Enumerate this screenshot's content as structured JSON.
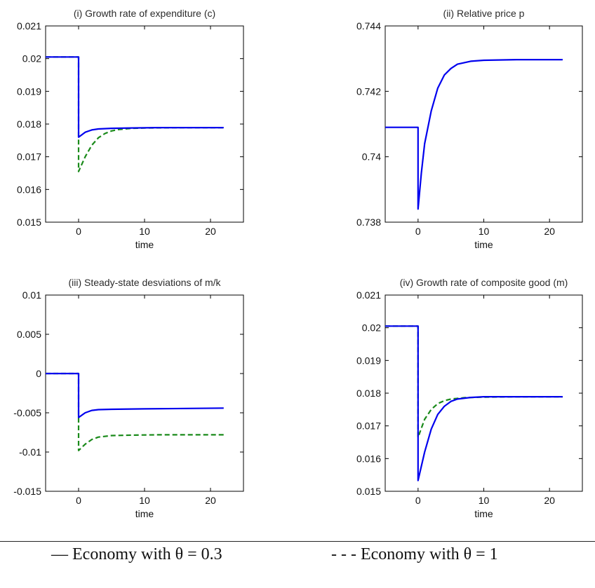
{
  "legend": {
    "series1_label": "— Economy with θ = 0.3",
    "series2_label": "- - - Economy with θ = 1"
  },
  "colors": {
    "series1": "#0000ee",
    "series2": "#1a8a1a",
    "axis": "#000000"
  },
  "chart_data": [
    {
      "type": "line",
      "title": "(i) Growth rate of expenditure (c)",
      "xlabel": "time",
      "ylabel": "",
      "xlim": [
        -5,
        25
      ],
      "ylim": [
        0.015,
        0.021
      ],
      "xticks": [
        "0",
        "10",
        "20"
      ],
      "yticks": [
        "0.015",
        "0.016",
        "0.017",
        "0.018",
        "0.019",
        "0.02",
        "0.021"
      ],
      "series": [
        {
          "values": [
            [
              -5,
              0.02005
            ],
            [
              0,
              0.02005
            ],
            [
              0,
              0.0176
            ],
            [
              1,
              0.01775
            ],
            [
              2,
              0.01782
            ],
            [
              3,
              0.01785
            ],
            [
              5,
              0.01787
            ],
            [
              8,
              0.01788
            ],
            [
              12,
              0.01789
            ],
            [
              22,
              0.01789
            ]
          ]
        },
        {
          "values": [
            [
              -5,
              0.02005
            ],
            [
              0,
              0.02005
            ],
            [
              0,
              0.01655
            ],
            [
              1,
              0.017
            ],
            [
              2,
              0.01735
            ],
            [
              3,
              0.01758
            ],
            [
              4,
              0.01771
            ],
            [
              5,
              0.01779
            ],
            [
              6,
              0.01783
            ],
            [
              8,
              0.01787
            ],
            [
              10,
              0.01788
            ],
            [
              15,
              0.01789
            ],
            [
              22,
              0.01789
            ]
          ]
        }
      ]
    },
    {
      "type": "line",
      "title": "(ii) Relative price p",
      "xlabel": "time",
      "ylabel": "",
      "xlim": [
        -5,
        25
      ],
      "ylim": [
        0.738,
        0.744
      ],
      "xticks": [
        "0",
        "10",
        "20"
      ],
      "yticks": [
        "0.738",
        "0.74",
        "0.742",
        "0.744"
      ],
      "series": [
        {
          "values": [
            [
              -5,
              0.7409
            ],
            [
              0,
              0.7409
            ],
            [
              0,
              0.7384
            ],
            [
              0.5,
              0.7395
            ],
            [
              1,
              0.7404
            ],
            [
              2,
              0.7414
            ],
            [
              3,
              0.7421
            ],
            [
              4,
              0.7425
            ],
            [
              5,
              0.7427
            ],
            [
              6,
              0.74283
            ],
            [
              8,
              0.74292
            ],
            [
              10,
              0.74295
            ],
            [
              15,
              0.74297
            ],
            [
              22,
              0.74297
            ]
          ]
        }
      ]
    },
    {
      "type": "line",
      "title": "(iii) Steady-state desviations of m/k",
      "xlabel": "time",
      "ylabel": "",
      "xlim": [
        -5,
        25
      ],
      "ylim": [
        -0.015,
        0.01
      ],
      "xticks": [
        "0",
        "10",
        "20"
      ],
      "yticks": [
        "-0.015",
        "-0.01",
        "-0.005",
        "0",
        "0.005",
        "0.01"
      ],
      "series": [
        {
          "values": [
            [
              -5,
              0
            ],
            [
              0,
              0
            ],
            [
              0,
              -0.0056
            ],
            [
              1,
              -0.005
            ],
            [
              2,
              -0.0047
            ],
            [
              3,
              -0.0046
            ],
            [
              5,
              -0.00455
            ],
            [
              10,
              -0.0045
            ],
            [
              22,
              -0.0044
            ]
          ]
        },
        {
          "values": [
            [
              -5,
              0
            ],
            [
              0,
              0
            ],
            [
              0,
              -0.0098
            ],
            [
              1,
              -0.009
            ],
            [
              2,
              -0.0084
            ],
            [
              3,
              -0.0081
            ],
            [
              5,
              -0.0079
            ],
            [
              8,
              -0.00785
            ],
            [
              12,
              -0.0078
            ],
            [
              22,
              -0.0078
            ]
          ]
        }
      ]
    },
    {
      "type": "line",
      "title": "(iv) Growth rate of composite good (m)",
      "xlabel": "time",
      "ylabel": "",
      "xlim": [
        -5,
        25
      ],
      "ylim": [
        0.015,
        0.021
      ],
      "xticks": [
        "0",
        "10",
        "20"
      ],
      "yticks": [
        "0.015",
        "0.016",
        "0.017",
        "0.018",
        "0.019",
        "0.02",
        "0.021"
      ],
      "series": [
        {
          "values": [
            [
              -5,
              0.02005
            ],
            [
              0,
              0.02005
            ],
            [
              0,
              0.01533
            ],
            [
              1,
              0.0162
            ],
            [
              2,
              0.0169
            ],
            [
              3,
              0.01735
            ],
            [
              4,
              0.0176
            ],
            [
              5,
              0.01775
            ],
            [
              6,
              0.01782
            ],
            [
              8,
              0.01787
            ],
            [
              10,
              0.01789
            ],
            [
              15,
              0.01789
            ],
            [
              22,
              0.01789
            ]
          ]
        },
        {
          "values": [
            [
              -5,
              0.02005
            ],
            [
              0,
              0.02005
            ],
            [
              0,
              0.01665
            ],
            [
              1,
              0.0172
            ],
            [
              2,
              0.0175
            ],
            [
              3,
              0.01768
            ],
            [
              4,
              0.01777
            ],
            [
              5,
              0.01782
            ],
            [
              7,
              0.01786
            ],
            [
              10,
              0.01788
            ],
            [
              15,
              0.01789
            ],
            [
              22,
              0.01789
            ]
          ]
        }
      ]
    }
  ]
}
